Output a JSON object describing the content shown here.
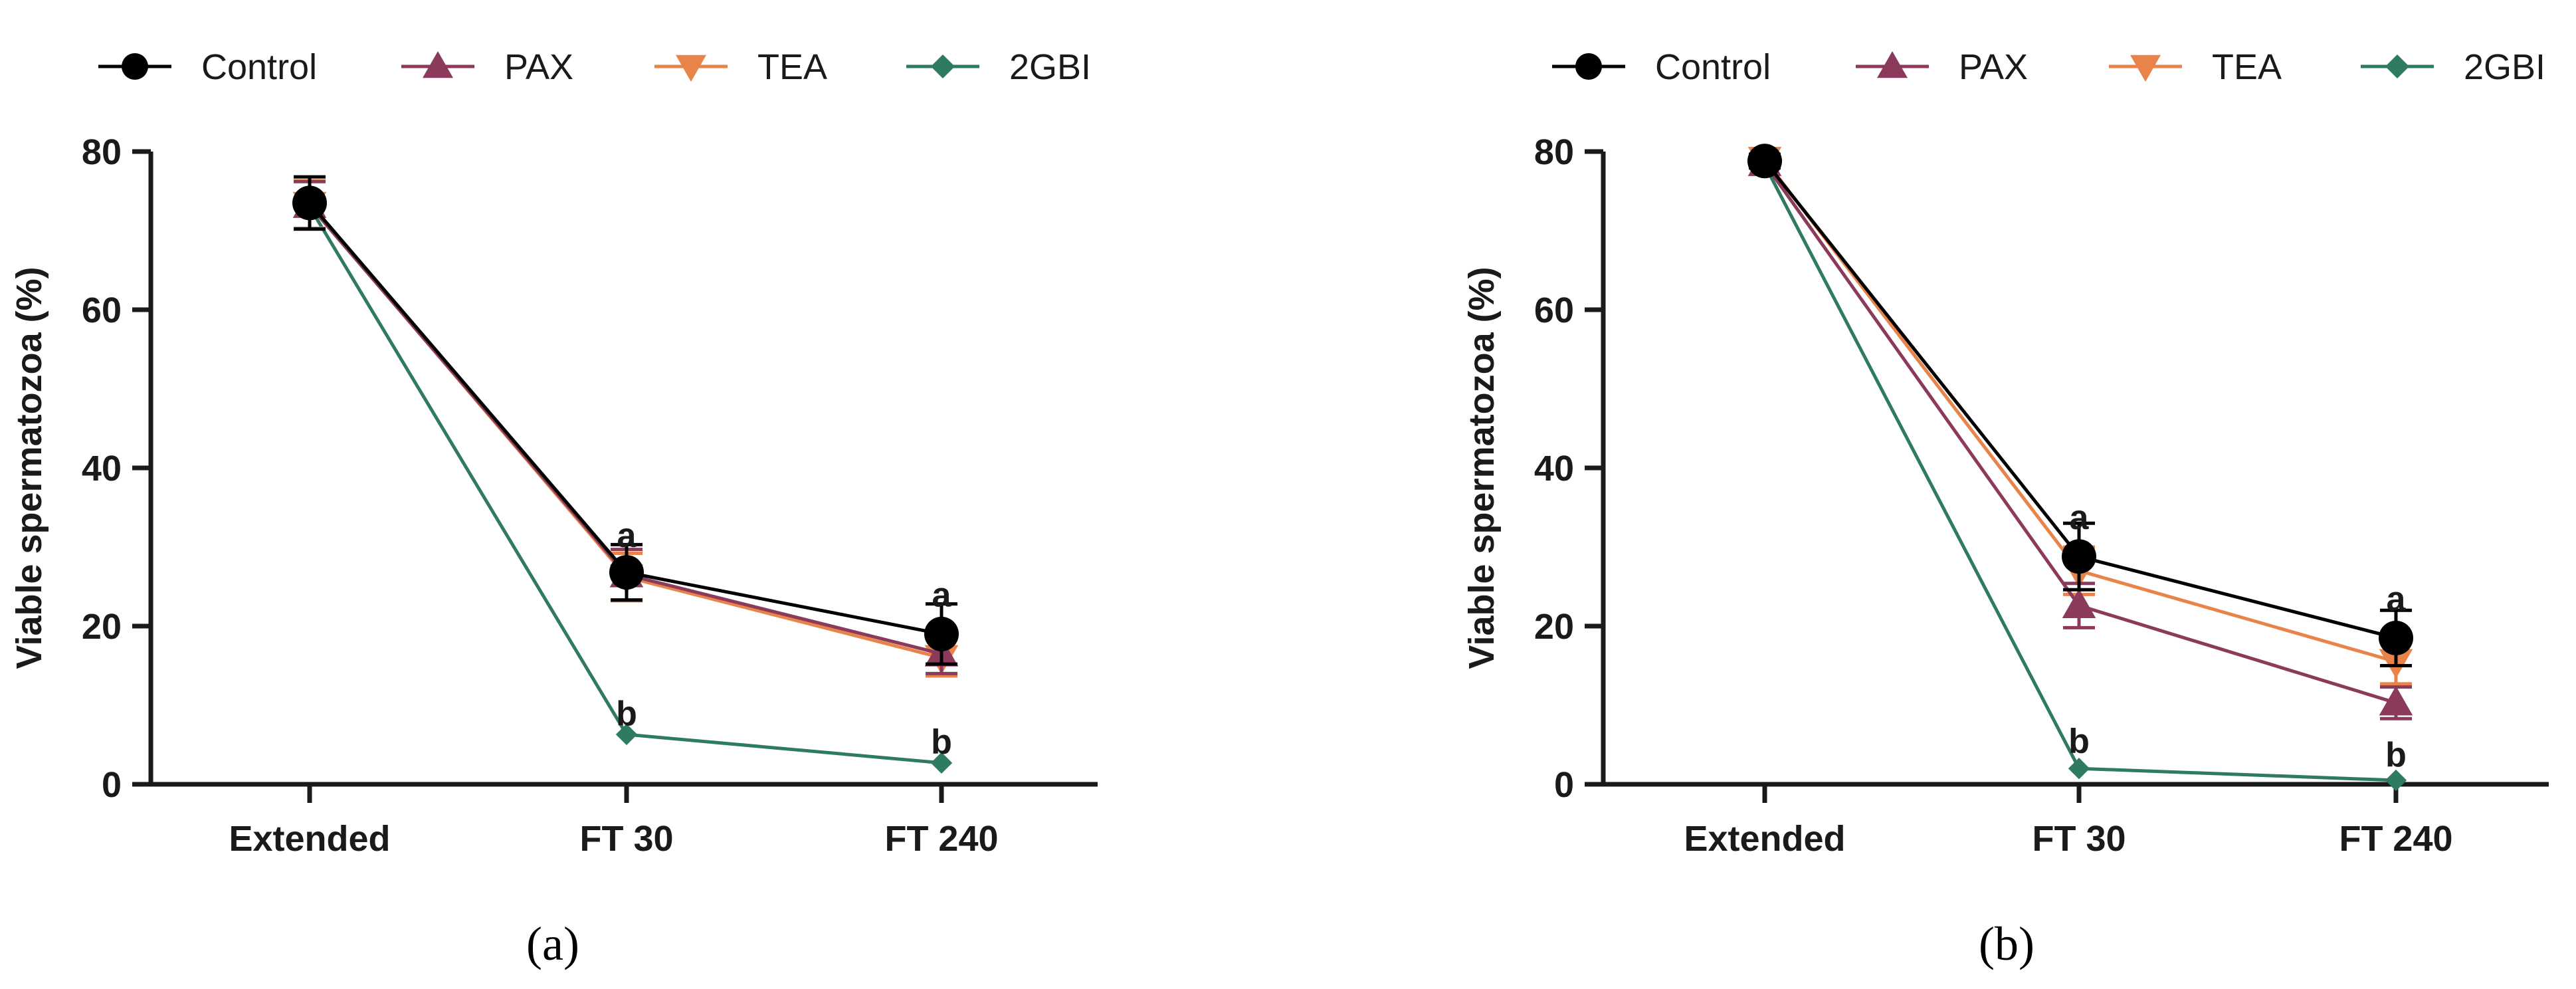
{
  "colors": {
    "Control": "#000000",
    "PAX": "#8c3a5c",
    "TEA": "#e8834a",
    "2GBI": "#2e7a62",
    "axis": "#1a1a1a"
  },
  "markers": {
    "Control": "circle",
    "PAX": "triangle-up",
    "TEA": "triangle-down",
    "2GBI": "diamond"
  },
  "chart_data": [
    {
      "type": "line",
      "panel_label": "(a)",
      "title": "",
      "xlabel": "",
      "ylabel": "Viable spermatozoa (%)",
      "categories": [
        "Extended",
        "FT 30",
        "FT 240"
      ],
      "ylim": [
        0,
        80
      ],
      "yticks": [
        0,
        20,
        40,
        60,
        80
      ],
      "grid": false,
      "legend": {
        "position": "top",
        "entries": [
          "Control",
          "PAX",
          "TEA",
          "2GBI"
        ]
      },
      "series": [
        {
          "name": "Control",
          "values": [
            73.5,
            26.8,
            19.0
          ],
          "errors": [
            3.3,
            3.5,
            3.8
          ]
        },
        {
          "name": "PAX",
          "values": [
            73.2,
            26.5,
            16.5
          ],
          "errors": [
            3.0,
            3.2,
            2.5
          ]
        },
        {
          "name": "TEA",
          "values": [
            73.3,
            26.2,
            16.0
          ],
          "errors": [
            3.0,
            3.0,
            2.3
          ]
        },
        {
          "name": "2GBI",
          "values": [
            73.0,
            6.3,
            2.7
          ],
          "errors": [
            0,
            0,
            0
          ]
        }
      ],
      "annotations": [
        {
          "x": "FT 30",
          "y": 31.5,
          "text": "a"
        },
        {
          "x": "FT 30",
          "y": 9.0,
          "text": "b"
        },
        {
          "x": "FT 240",
          "y": 24.0,
          "text": "a"
        },
        {
          "x": "FT 240",
          "y": 5.4,
          "text": "b"
        }
      ]
    },
    {
      "type": "line",
      "panel_label": "(b)",
      "title": "",
      "xlabel": "",
      "ylabel": "Viable spermatozoa (%)",
      "categories": [
        "Extended",
        "FT 30",
        "FT 240"
      ],
      "ylim": [
        0,
        80
      ],
      "yticks": [
        0,
        20,
        40,
        60,
        80
      ],
      "grid": false,
      "legend": {
        "position": "top",
        "entries": [
          "Control",
          "PAX",
          "TEA",
          "2GBI"
        ]
      },
      "series": [
        {
          "name": "Control",
          "values": [
            78.8,
            28.8,
            18.5
          ],
          "errors": [
            0.8,
            4.2,
            3.5
          ]
        },
        {
          "name": "PAX",
          "values": [
            78.5,
            22.6,
            10.3
          ],
          "errors": [
            0.6,
            2.8,
            2.0
          ]
        },
        {
          "name": "TEA",
          "values": [
            79.0,
            27.0,
            15.5
          ],
          "errors": [
            0.7,
            3.0,
            2.8
          ]
        },
        {
          "name": "2GBI",
          "values": [
            78.3,
            2.0,
            0.5
          ],
          "errors": [
            0,
            0,
            0
          ]
        }
      ],
      "annotations": [
        {
          "x": "FT 30",
          "y": 33.8,
          "text": "a"
        },
        {
          "x": "FT 30",
          "y": 5.5,
          "text": "b"
        },
        {
          "x": "FT 240",
          "y": 23.5,
          "text": "a"
        },
        {
          "x": "FT 240",
          "y": 3.8,
          "text": "b"
        }
      ]
    }
  ]
}
